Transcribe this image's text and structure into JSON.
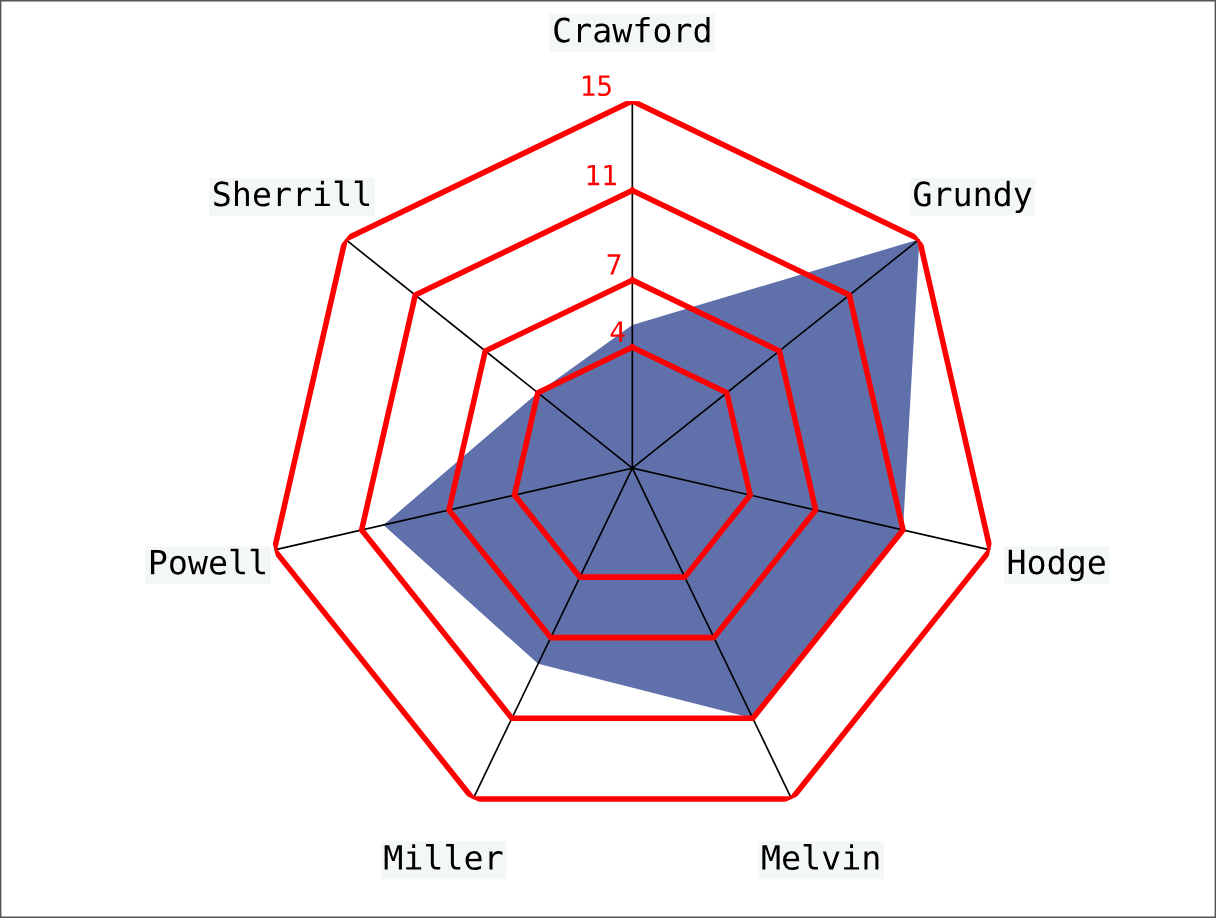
{
  "chart_data": {
    "type": "radar",
    "categories": [
      "Crawford",
      "Grundy",
      "Hodge",
      "Melvin",
      "Miller",
      "Powell",
      "Sherrill"
    ],
    "series": [
      {
        "type": "area",
        "color": "#5f70aa",
        "values": [
          5,
          15,
          11,
          11,
          8.3,
          10,
          4
        ]
      }
    ],
    "ylim": [
      -1.4,
      15
    ],
    "yticks": [
      4,
      7,
      11,
      15
    ],
    "grid": true
  }
}
